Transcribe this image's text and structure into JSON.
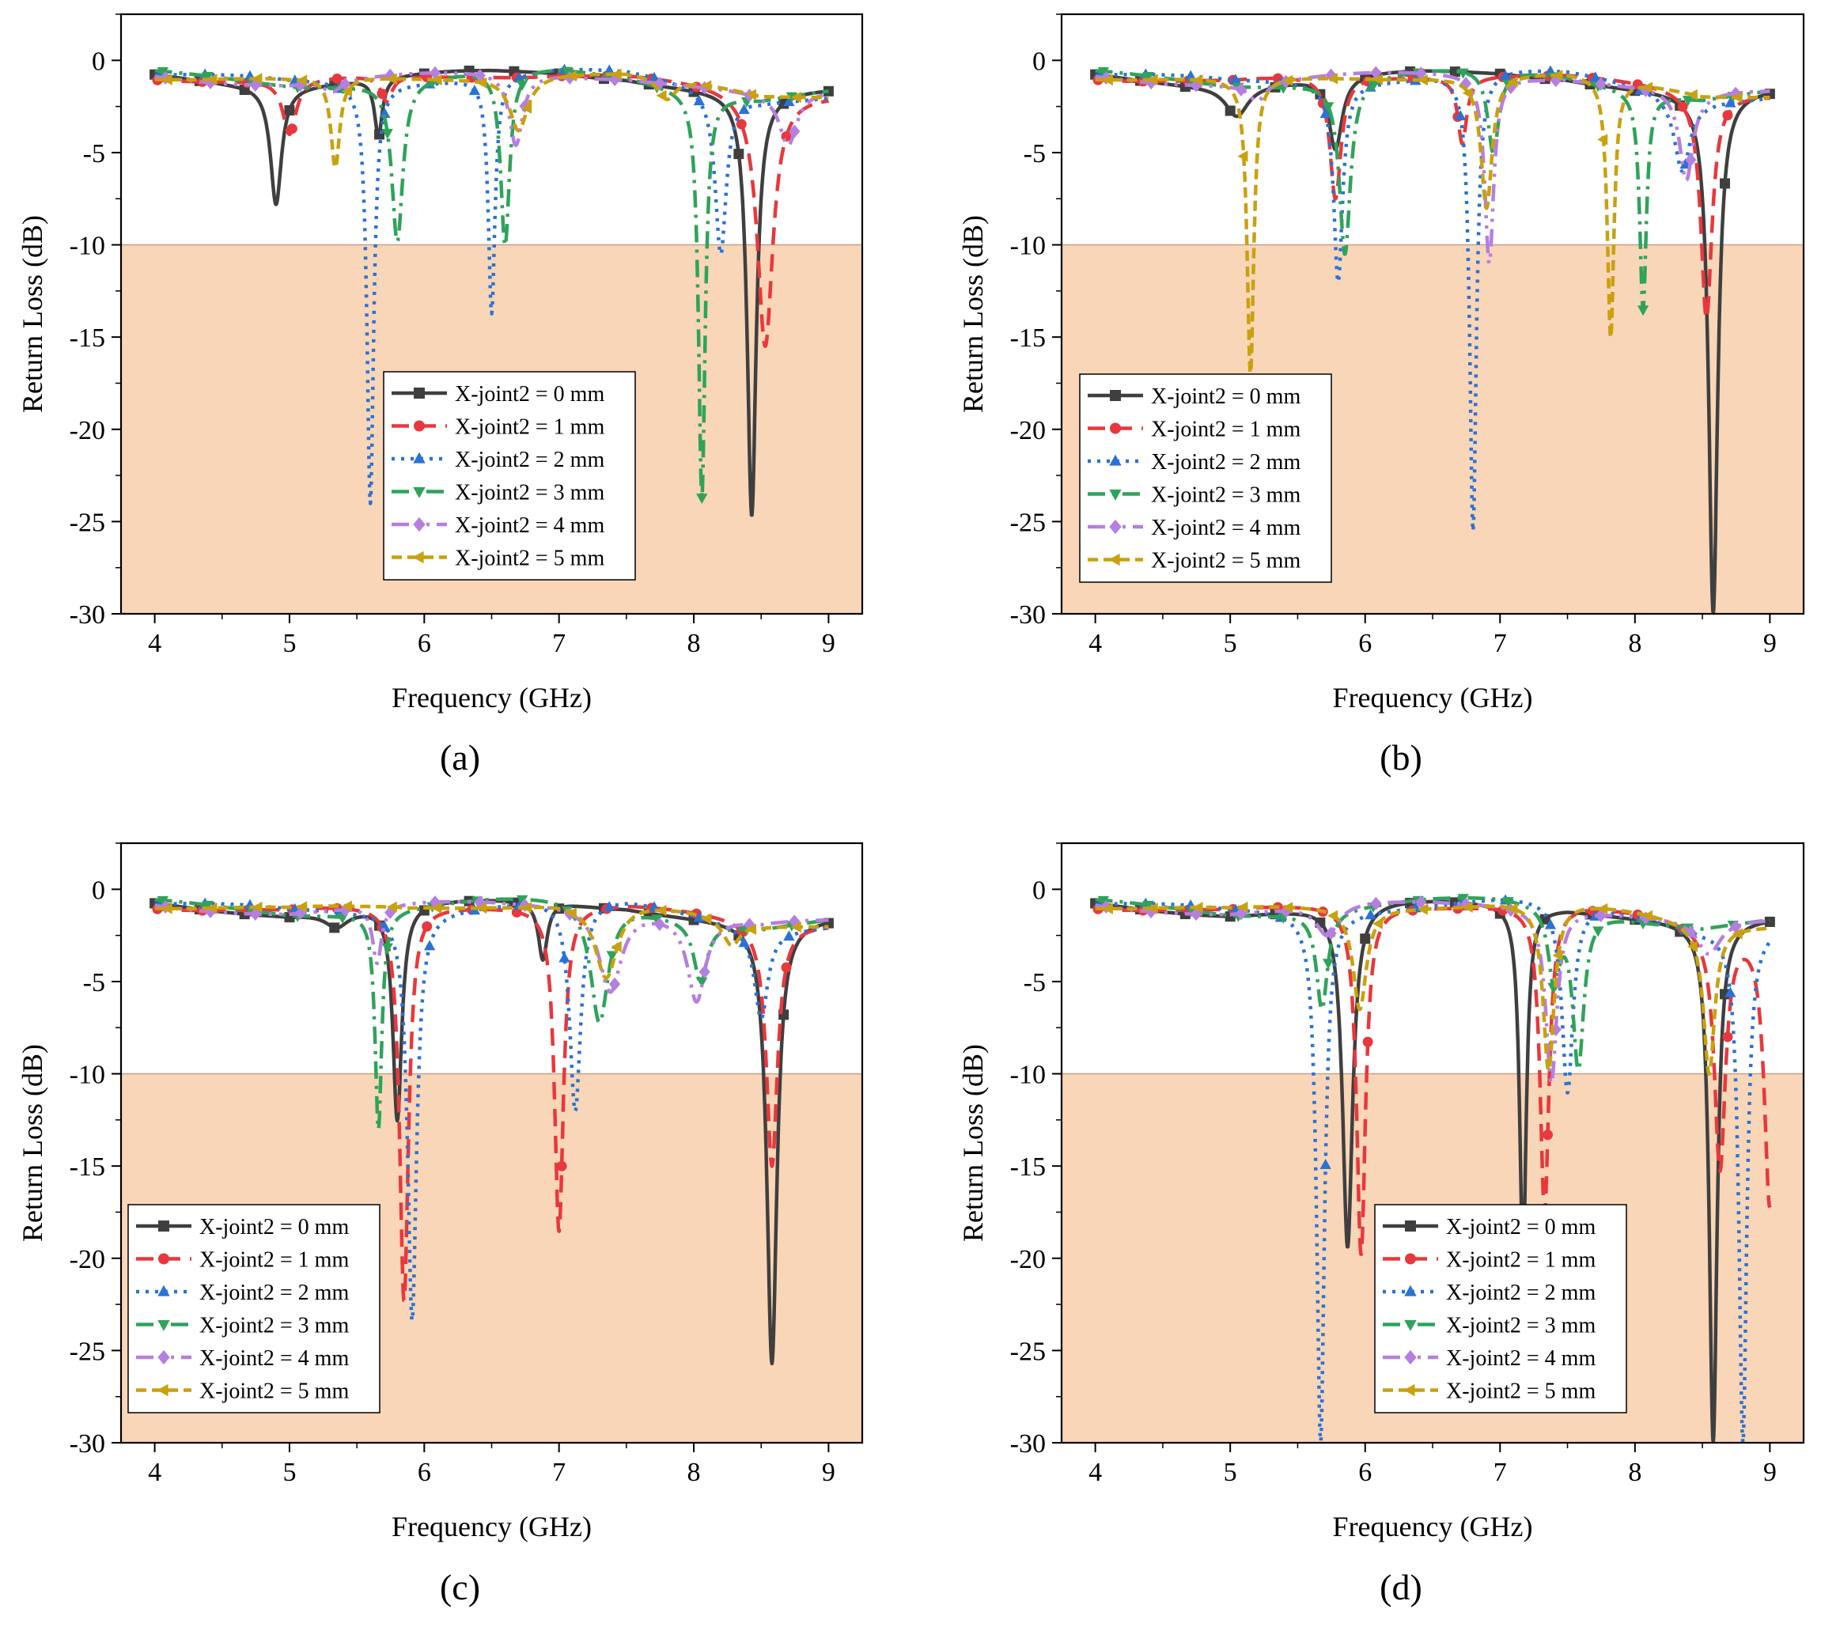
{
  "figure": {
    "background_band_color": "#f9d6b8",
    "series_styles": [
      {
        "color": "#3f3f3f",
        "dash": "none",
        "marker": "square"
      },
      {
        "color": "#e8383d",
        "dash": "22,12",
        "marker": "circle"
      },
      {
        "color": "#2a72d6",
        "dash": "4,8",
        "marker": "triangle-up"
      },
      {
        "color": "#2fa35a",
        "dash": "22,9,4,9",
        "marker": "triangle-down"
      },
      {
        "color": "#b57fe0",
        "dash": "22,9,4,9,4,9",
        "marker": "diamond"
      },
      {
        "color": "#c9a10f",
        "dash": "13,7",
        "marker": "triangle-left"
      }
    ]
  },
  "chart_data": [
    {
      "type": "line",
      "panel_label": "(a)",
      "xlabel": "Frequency (GHz)",
      "ylabel": "Return Loss (dB)",
      "xlim": [
        3.75,
        9.25
      ],
      "ylim": [
        -30,
        2.5
      ],
      "xticks": [
        4,
        5,
        6,
        7,
        8,
        9
      ],
      "yticks": [
        0,
        -5,
        -10,
        -15,
        -20,
        -25,
        -30
      ],
      "shaded_region": {
        "y_from": -30,
        "y_to": -10
      },
      "legend_position": "center",
      "series": [
        {
          "name": "X-joint2 = 0 mm",
          "dips": [
            [
              4.9,
              -7.8,
              0.05
            ],
            [
              5.66,
              -4.1,
              0.035
            ],
            [
              8.43,
              -24.7,
              0.04
            ]
          ]
        },
        {
          "name": "X-joint2 = 1 mm",
          "dips": [
            [
              5.0,
              -4.0,
              0.06
            ],
            [
              5.72,
              -2.2,
              0.05
            ],
            [
              8.53,
              -15.5,
              0.07
            ]
          ]
        },
        {
          "name": "X-joint2 = 2 mm",
          "dips": [
            [
              5.6,
              -24.0,
              0.03
            ],
            [
              6.5,
              -13.7,
              0.03
            ],
            [
              8.2,
              -10.5,
              0.05
            ]
          ]
        },
        {
          "name": "X-joint2 = 3 mm",
          "dips": [
            [
              5.8,
              -9.8,
              0.05
            ],
            [
              6.6,
              -10.0,
              0.04
            ],
            [
              8.06,
              -23.7,
              0.03
            ]
          ]
        },
        {
          "name": "X-joint2 = 4 mm",
          "dips": [
            [
              5.32,
              -1.7,
              0.08
            ],
            [
              6.68,
              -4.6,
              0.06
            ],
            [
              8.7,
              -4.6,
              0.08
            ]
          ]
        },
        {
          "name": "X-joint2 = 5 mm",
          "dips": [
            [
              5.34,
              -5.8,
              0.04
            ],
            [
              6.7,
              -3.8,
              0.08
            ],
            [
              7.8,
              -2.1,
              0.08
            ]
          ]
        }
      ]
    },
    {
      "type": "line",
      "panel_label": "(b)",
      "xlabel": "Frequency (GHz)",
      "ylabel": "Return Loss (dB)",
      "xlim": [
        3.75,
        9.25
      ],
      "ylim": [
        -30,
        2.5
      ],
      "xticks": [
        4,
        5,
        6,
        7,
        8,
        9
      ],
      "yticks": [
        0,
        -5,
        -10,
        -15,
        -20,
        -25,
        -30
      ],
      "shaded_region": {
        "y_from": -30,
        "y_to": -10
      },
      "legend_position": "center-left",
      "series": [
        {
          "name": "X-joint2 = 0 mm",
          "dips": [
            [
              5.05,
              -3.0,
              0.1
            ],
            [
              5.78,
              -4.8,
              0.06
            ],
            [
              8.58,
              -30.0,
              0.04
            ]
          ]
        },
        {
          "name": "X-joint2 = 1 mm",
          "dips": [
            [
              5.78,
              -7.5,
              0.05
            ],
            [
              6.72,
              -4.5,
              0.04
            ],
            [
              8.53,
              -14.0,
              0.05
            ]
          ]
        },
        {
          "name": "X-joint2 = 2 mm",
          "dips": [
            [
              5.8,
              -12.0,
              0.04
            ],
            [
              6.8,
              -25.5,
              0.03
            ],
            [
              8.35,
              -6.0,
              0.07
            ]
          ]
        },
        {
          "name": "X-joint2 = 3 mm",
          "dips": [
            [
              5.85,
              -10.5,
              0.05
            ],
            [
              6.95,
              -5.0,
              0.05
            ],
            [
              8.06,
              -13.5,
              0.03
            ]
          ]
        },
        {
          "name": "X-joint2 = 4 mm",
          "dips": [
            [
              5.2,
              -2.2,
              0.08
            ],
            [
              6.92,
              -11.0,
              0.04
            ],
            [
              8.38,
              -6.5,
              0.06
            ]
          ]
        },
        {
          "name": "X-joint2 = 5 mm",
          "dips": [
            [
              5.15,
              -17.0,
              0.03
            ],
            [
              6.9,
              -8.0,
              0.05
            ],
            [
              7.82,
              -15.0,
              0.03
            ]
          ]
        }
      ]
    },
    {
      "type": "line",
      "panel_label": "(c)",
      "xlabel": "Frequency (GHz)",
      "ylabel": "Return Loss (dB)",
      "xlim": [
        3.75,
        9.25
      ],
      "ylim": [
        -30,
        2.5
      ],
      "xticks": [
        4,
        5,
        6,
        7,
        8,
        9
      ],
      "yticks": [
        0,
        -5,
        -10,
        -15,
        -20,
        -25,
        -30
      ],
      "shaded_region": {
        "y_from": -30,
        "y_to": -10
      },
      "legend_position": "bottom-left",
      "series": [
        {
          "name": "X-joint2 = 0 mm",
          "dips": [
            [
              5.35,
              -2.0,
              0.1
            ],
            [
              5.8,
              -12.5,
              0.04
            ],
            [
              6.88,
              -3.8,
              0.04
            ],
            [
              8.58,
              -25.7,
              0.045
            ]
          ]
        },
        {
          "name": "X-joint2 = 1 mm",
          "dips": [
            [
              5.85,
              -22.3,
              0.04
            ],
            [
              7.0,
              -18.5,
              0.04
            ],
            [
              8.58,
              -15.0,
              0.05
            ]
          ]
        },
        {
          "name": "X-joint2 = 2 mm",
          "dips": [
            [
              5.91,
              -23.4,
              0.04
            ],
            [
              7.12,
              -12.0,
              0.05
            ],
            [
              8.5,
              -7.0,
              0.06
            ]
          ]
        },
        {
          "name": "X-joint2 = 3 mm",
          "dips": [
            [
              5.66,
              -13.0,
              0.03
            ],
            [
              7.3,
              -7.2,
              0.08
            ],
            [
              8.05,
              -5.0,
              0.06
            ]
          ]
        },
        {
          "name": "X-joint2 = 4 mm",
          "dips": [
            [
              5.65,
              -4.0,
              0.04
            ],
            [
              7.38,
              -5.5,
              0.1
            ],
            [
              8.02,
              -6.0,
              0.08
            ]
          ]
        },
        {
          "name": "X-joint2 = 5 mm",
          "dips": [
            [
              5.88,
              -1.0,
              0.06
            ],
            [
              7.35,
              -4.8,
              0.1
            ],
            [
              8.28,
              -3.0,
              0.08
            ]
          ]
        }
      ]
    },
    {
      "type": "line",
      "panel_label": "(d)",
      "xlabel": "Frequency (GHz)",
      "ylabel": "Return Loss (dB)",
      "xlim": [
        3.75,
        9.25
      ],
      "ylim": [
        -30,
        2.5
      ],
      "xticks": [
        4,
        5,
        6,
        7,
        8,
        9
      ],
      "yticks": [
        0,
        -5,
        -10,
        -15,
        -20,
        -25,
        -30
      ],
      "shaded_region": {
        "y_from": -30,
        "y_to": -10
      },
      "legend_position": "bottom-right",
      "series": [
        {
          "name": "X-joint2 = 0 mm",
          "dips": [
            [
              5.87,
              -19.4,
              0.045
            ],
            [
              7.17,
              -20.0,
              0.03
            ],
            [
              8.58,
              -30.0,
              0.035
            ]
          ]
        },
        {
          "name": "X-joint2 = 1 mm",
          "dips": [
            [
              5.97,
              -19.8,
              0.04
            ],
            [
              7.33,
              -17.5,
              0.04
            ],
            [
              8.63,
              -15.0,
              0.05
            ],
            [
              9.0,
              -17.0,
              0.05
            ]
          ]
        },
        {
          "name": "X-joint2 = 2 mm",
          "dips": [
            [
              5.67,
              -30.0,
              0.035
            ],
            [
              7.5,
              -11.0,
              0.05
            ],
            [
              8.8,
              -30.0,
              0.035
            ]
          ]
        },
        {
          "name": "X-joint2 = 3 mm",
          "dips": [
            [
              5.68,
              -6.5,
              0.05
            ],
            [
              7.4,
              -4.8,
              0.05
            ],
            [
              7.58,
              -9.5,
              0.05
            ]
          ]
        },
        {
          "name": "X-joint2 = 4 mm",
          "dips": [
            [
              5.72,
              -2.5,
              0.1
            ],
            [
              7.38,
              -10.5,
              0.05
            ],
            [
              8.55,
              -3.5,
              0.1
            ]
          ]
        },
        {
          "name": "X-joint2 = 5 mm",
          "dips": [
            [
              5.96,
              -6.5,
              0.06
            ],
            [
              7.36,
              -9.8,
              0.05
            ],
            [
              8.55,
              -10.0,
              0.05
            ]
          ]
        }
      ]
    }
  ]
}
